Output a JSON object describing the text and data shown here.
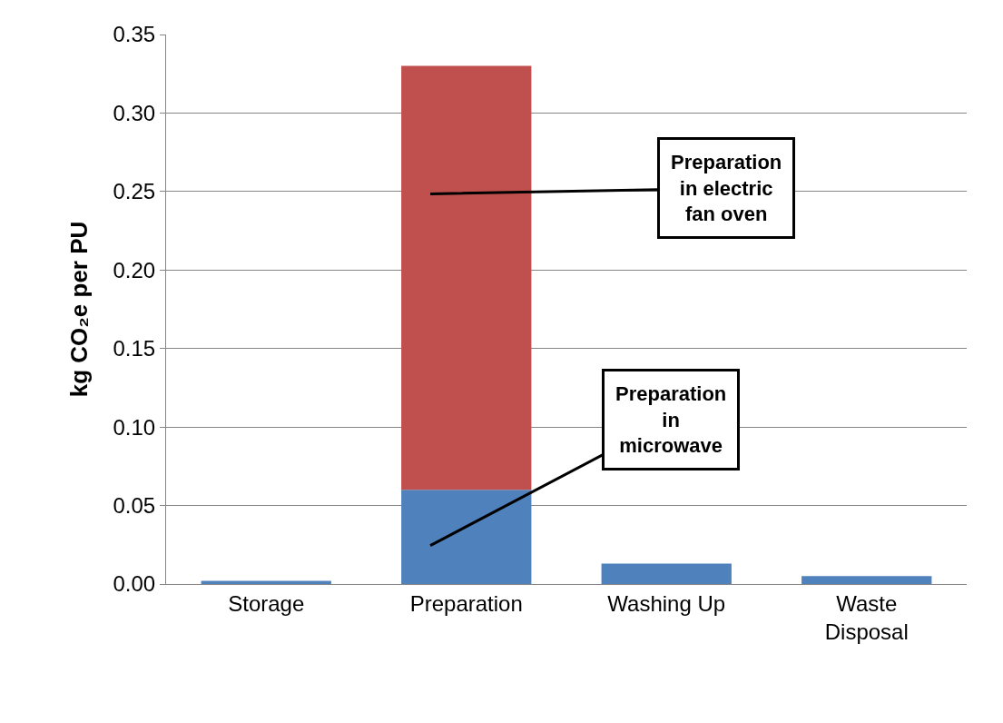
{
  "chart_data": {
    "type": "bar",
    "stacked": true,
    "ylabel": "kg CO₂e per PU",
    "categories": [
      "Storage",
      "Preparation",
      "Washing Up",
      "Waste Disposal"
    ],
    "series": [
      {
        "color": "#4f81bd",
        "values": [
          0.002,
          0.06,
          0.013,
          0.005
        ]
      },
      {
        "color": "#c0504d",
        "values": [
          null,
          0.27,
          null,
          null
        ]
      }
    ],
    "ylim": [
      0,
      0.35
    ],
    "yticks": [
      {
        "value": 0,
        "label": "0.00"
      },
      {
        "value": 0.05,
        "label": "0.05"
      },
      {
        "value": 0.1,
        "label": "0.10"
      },
      {
        "value": 0.15,
        "label": "0.15"
      },
      {
        "value": 0.2,
        "label": "0.20"
      },
      {
        "value": 0.25,
        "label": "0.25"
      },
      {
        "value": 0.3,
        "label": "0.30"
      },
      {
        "value": 0.35,
        "label": "0.35"
      }
    ],
    "grid": "y",
    "annotations": [
      "Preparation in electric fan oven",
      "Preparation in microwave"
    ]
  }
}
